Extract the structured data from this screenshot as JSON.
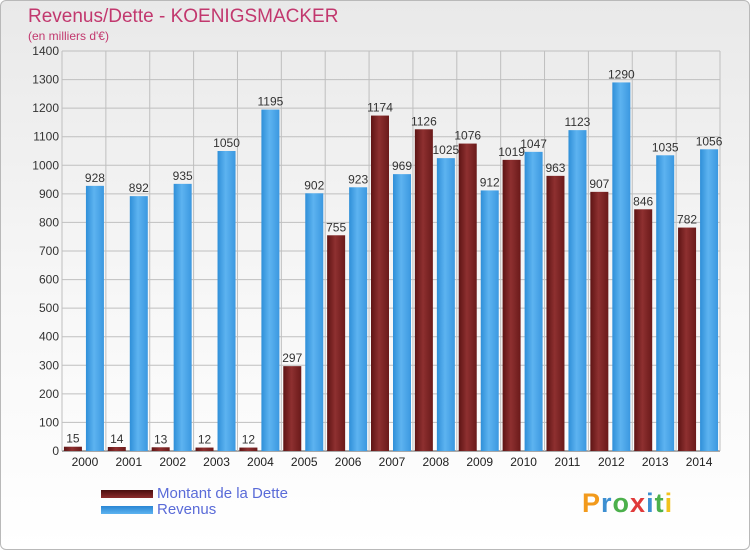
{
  "header": {
    "title": "Revenus/Dette - KOENIGSMACKER",
    "subtitle": "(en milliers d'€)"
  },
  "chart_data": {
    "type": "bar",
    "title": "Revenus/Dette - KOENIGSMACKER",
    "ylabel": "(en milliers d'€)",
    "ylim": [
      0,
      1400
    ],
    "y_ticks": [
      0,
      100,
      200,
      300,
      400,
      500,
      600,
      700,
      800,
      900,
      1000,
      1100,
      1200,
      1300,
      1400
    ],
    "grid": true,
    "categories": [
      "2000",
      "2001",
      "2002",
      "2003",
      "2004",
      "2005",
      "2006",
      "2007",
      "2008",
      "2009",
      "2010",
      "2011",
      "2012",
      "2013",
      "2014"
    ],
    "series": [
      {
        "name": "Montant de la Dette",
        "color": "#8c2b2b",
        "values": [
          15,
          14,
          13,
          12,
          12,
          297,
          755,
          1174,
          1126,
          1076,
          1019,
          963,
          907,
          846,
          782
        ]
      },
      {
        "name": "Revenus",
        "color": "#3a9ee6",
        "values": [
          928,
          892,
          935,
          1050,
          1195,
          902,
          923,
          969,
          1025,
          912,
          1047,
          1123,
          1290,
          1035,
          1056
        ]
      }
    ],
    "legend_position": "bottom-left"
  },
  "legend": {
    "items": [
      {
        "label": "Montant de la Dette",
        "color": "#8c2b2b"
      },
      {
        "label": "Revenus",
        "color": "#3a9ee6"
      }
    ]
  },
  "logo": {
    "letters": [
      {
        "char": "P",
        "color": "#f29a1c"
      },
      {
        "char": "r",
        "color": "#3d8fd1"
      },
      {
        "char": "o",
        "color": "#4cb04c"
      },
      {
        "char": "x",
        "color": "#e03a3a"
      },
      {
        "char": "i",
        "color": "#3d8fd1"
      },
      {
        "char": "t",
        "color": "#4cb04c"
      },
      {
        "char": "i",
        "color": "#f2c21c"
      }
    ]
  }
}
